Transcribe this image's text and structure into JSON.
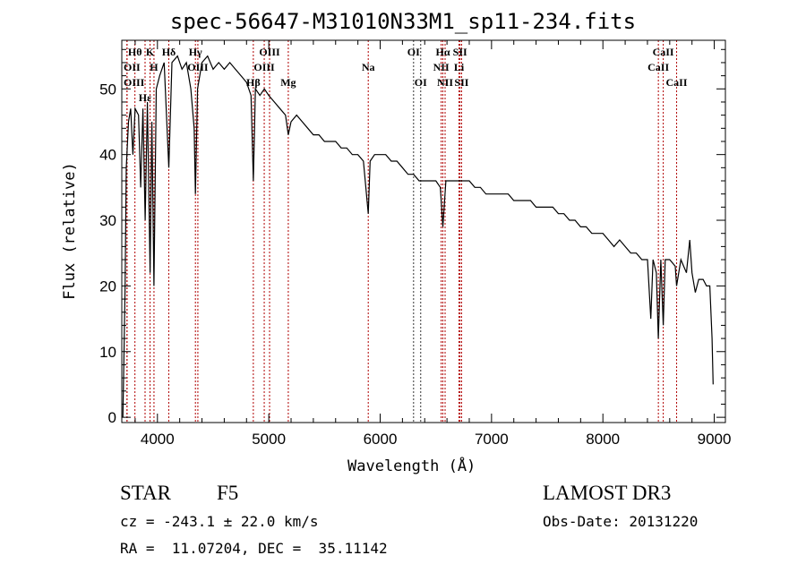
{
  "chart_data": {
    "type": "line",
    "title": "spec-56647-M31010N33M1_sp11-234.fits",
    "xlabel": "Wavelength (Å)",
    "ylabel": "Flux (relative)",
    "xlim": [
      3680,
      9100
    ],
    "ylim": [
      -0.8,
      57.4
    ],
    "xticks": [
      4000,
      5000,
      6000,
      7000,
      8000,
      9000
    ],
    "yticks": [
      0,
      10,
      20,
      30,
      40,
      50
    ],
    "grid": false,
    "series": [
      {
        "name": "spectrum",
        "x": [
          3690,
          3700,
          3710,
          3720,
          3740,
          3760,
          3780,
          3800,
          3830,
          3850,
          3870,
          3890,
          3910,
          3934,
          3950,
          3969,
          3990,
          4020,
          4060,
          4102,
          4130,
          4180,
          4220,
          4260,
          4300,
          4330,
          4341,
          4360,
          4400,
          4450,
          4500,
          4550,
          4600,
          4650,
          4700,
          4750,
          4800,
          4840,
          4861,
          4880,
          4920,
          4960,
          5000,
          5050,
          5100,
          5150,
          5175,
          5200,
          5250,
          5300,
          5350,
          5400,
          5450,
          5500,
          5550,
          5600,
          5650,
          5700,
          5750,
          5800,
          5850,
          5893,
          5910,
          5950,
          6000,
          6050,
          6100,
          6150,
          6200,
          6250,
          6300,
          6350,
          6400,
          6450,
          6500,
          6540,
          6563,
          6590,
          6650,
          6700,
          6750,
          6800,
          6850,
          6900,
          6950,
          7000,
          7050,
          7100,
          7150,
          7200,
          7250,
          7300,
          7350,
          7400,
          7450,
          7500,
          7550,
          7600,
          7650,
          7700,
          7750,
          7800,
          7850,
          7900,
          7950,
          8000,
          8050,
          8100,
          8150,
          8200,
          8250,
          8300,
          8350,
          8400,
          8430,
          8450,
          8480,
          8498,
          8520,
          8542,
          8560,
          8600,
          8650,
          8662,
          8700,
          8750,
          8780,
          8800,
          8830,
          8860,
          8900,
          8930,
          8960,
          8980,
          8990
        ],
        "y": [
          0,
          10,
          20,
          38,
          45,
          47,
          40,
          47,
          46,
          35,
          47,
          30,
          48,
          22,
          45,
          20,
          50,
          52,
          54,
          38,
          54,
          55,
          53,
          54,
          50,
          44,
          34,
          50,
          54,
          55,
          53,
          54,
          53,
          54,
          53,
          52,
          51,
          49,
          36,
          50,
          49,
          50,
          49,
          48,
          47,
          46,
          43,
          45,
          46,
          45,
          44,
          43,
          43,
          42,
          42,
          42,
          41,
          41,
          40,
          40,
          39,
          31,
          39,
          40,
          40,
          40,
          39,
          39,
          38,
          37,
          37,
          36,
          36,
          36,
          36,
          35,
          29,
          36,
          36,
          36,
          36,
          36,
          35,
          35,
          34,
          34,
          34,
          34,
          34,
          33,
          33,
          33,
          33,
          32,
          32,
          32,
          32,
          31,
          31,
          30,
          30,
          29,
          29,
          28,
          28,
          28,
          27,
          26,
          27,
          26,
          25,
          25,
          24,
          24,
          15,
          24,
          22,
          12,
          24,
          14,
          24,
          24,
          23,
          20,
          24,
          22,
          27,
          22,
          19,
          21,
          21,
          20,
          20,
          12,
          5
        ]
      }
    ],
    "line_markers": [
      {
        "label": "Hθ",
        "x": 3798,
        "row": 0,
        "color": "#b00000"
      },
      {
        "label": "OII",
        "x": 3727,
        "row": 1,
        "color": "#b00000"
      },
      {
        "label": "OIII",
        "x": 3727,
        "row": 2,
        "color": "#b00000"
      },
      {
        "label": "Hε",
        "x": 3889,
        "row": 1,
        "color": "#b00000"
      },
      {
        "label": "K",
        "x": 3934,
        "row": 0,
        "color": "#b00000"
      },
      {
        "label": "H",
        "x": 3969,
        "row": 1,
        "color": "#b00000"
      },
      {
        "label": "Hδ",
        "x": 4102,
        "row": 0,
        "color": "#b00000"
      },
      {
        "label": "Hγ",
        "x": 4341,
        "row": 0,
        "color": "#b00000"
      },
      {
        "label": "OIII",
        "x": 4363,
        "row": 0,
        "color": "#b00000"
      },
      {
        "label": "Hβ",
        "x": 4861,
        "row": 2,
        "color": "#b00000"
      },
      {
        "label": "OIII",
        "x": 4959,
        "row": 1,
        "color": "#b00000"
      },
      {
        "label": "OIII",
        "x": 5007,
        "row": 0,
        "color": "#b00000"
      },
      {
        "label": "Mg",
        "x": 5175,
        "row": 2,
        "color": "#b00000"
      },
      {
        "label": "Na",
        "x": 5893,
        "row": 1,
        "color": "#b00000"
      },
      {
        "label": "OI",
        "x": 6300,
        "row": 0,
        "color": "#333333"
      },
      {
        "label": "OI",
        "x": 6364,
        "row": 2,
        "color": "#333333"
      },
      {
        "label": "NII",
        "x": 6548,
        "row": 1,
        "color": "#b00000"
      },
      {
        "label": "Hα",
        "x": 6563,
        "row": 0,
        "color": "#b00000"
      },
      {
        "label": "NII",
        "x": 6583,
        "row": 2,
        "color": "#b00000"
      },
      {
        "label": "Li",
        "x": 6708,
        "row": 1,
        "color": "#b00000"
      },
      {
        "label": "SII",
        "x": 6717,
        "row": 0,
        "color": "#b00000"
      },
      {
        "label": "SII",
        "x": 6731,
        "row": 2,
        "color": "#b00000"
      },
      {
        "label": "CaII",
        "x": 8498,
        "row": 1,
        "color": "#b00000"
      },
      {
        "label": "CaII",
        "x": 8542,
        "row": 0,
        "color": "#b00000"
      },
      {
        "label": "CaII",
        "x": 8662,
        "row": 2,
        "color": "#b00000"
      }
    ]
  },
  "info": {
    "class": "STAR",
    "subclass": "F5",
    "cz": "cz = -243.1 ± 22.0 km/s",
    "radec": "RA =  11.07204, DEC =  35.11142",
    "survey": "LAMOST DR3",
    "obsdate": "Obs-Date: 20131220"
  }
}
